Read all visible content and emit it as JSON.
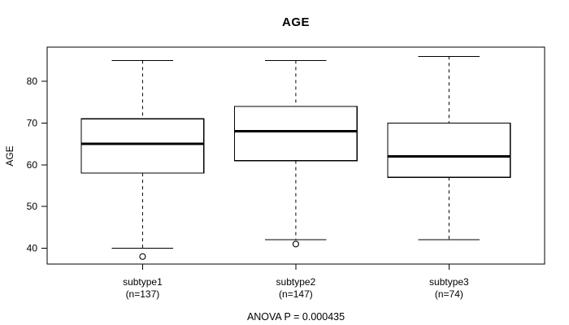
{
  "page": {
    "background": "#ffffff"
  },
  "chart_data": {
    "type": "boxplot",
    "title": "AGE",
    "ylabel": "AGE",
    "xlabel": "",
    "footnote": "ANOVA P = 0.000435",
    "y_ticks": [
      40,
      50,
      60,
      70,
      80
    ],
    "ylim": [
      36.2,
      88.2
    ],
    "grid": false,
    "legend": "none",
    "categories": [
      "subtype1",
      "subtype2",
      "subtype3"
    ],
    "category_sublabels": [
      "(n=137)",
      "(n=147)",
      "(n=74)"
    ],
    "sample_sizes": [
      137,
      147,
      74
    ],
    "series": [
      {
        "name": "subtype1",
        "n": 137,
        "whisker_low": 40,
        "q1": 58,
        "median": 65,
        "q3": 71,
        "whisker_high": 85,
        "outliers": [
          38
        ]
      },
      {
        "name": "subtype2",
        "n": 147,
        "whisker_low": 42,
        "q1": 61,
        "median": 68,
        "q3": 74,
        "whisker_high": 85,
        "outliers": [
          41
        ]
      },
      {
        "name": "subtype3",
        "n": 74,
        "whisker_low": 42,
        "q1": 57,
        "median": 62,
        "q3": 70,
        "whisker_high": 86,
        "outliers": []
      }
    ],
    "colors": {
      "line": "#000000",
      "box_fill": "#ffffff",
      "frame": "#000000",
      "background": "#ffffff"
    }
  }
}
